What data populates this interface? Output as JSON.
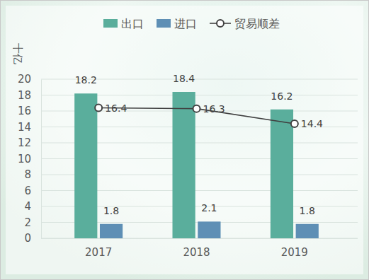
{
  "chart_data": {
    "type": "bar",
    "y_label": "十亿",
    "categories": [
      "2017",
      "2018",
      "2019"
    ],
    "series": [
      {
        "name": "出口",
        "type": "bar",
        "color": "#5aae9c",
        "values": [
          18.2,
          18.4,
          16.2
        ]
      },
      {
        "name": "进口",
        "type": "bar",
        "color": "#5e8fb5",
        "values": [
          1.8,
          2.1,
          1.8
        ]
      },
      {
        "name": "贸易顺差",
        "type": "line",
        "color": "#404040",
        "marker": "circle",
        "line_style": "solid",
        "values": [
          16.4,
          16.3,
          14.4
        ]
      }
    ],
    "ylim": [
      0,
      20
    ],
    "yticks": [
      0,
      2,
      4,
      6,
      8,
      10,
      12,
      14,
      16,
      18,
      20
    ],
    "grid": true,
    "legend": "top",
    "data_labels": true
  }
}
